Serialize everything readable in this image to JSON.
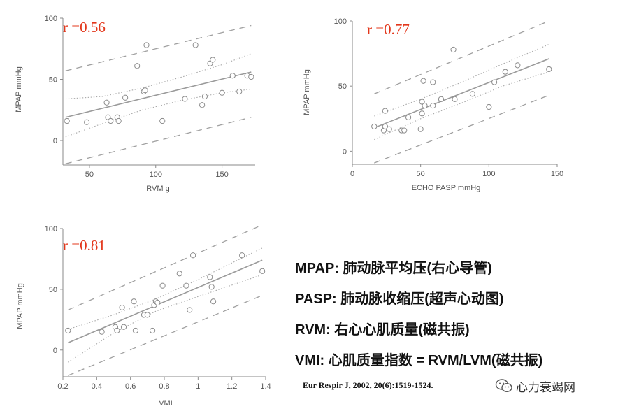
{
  "chart_data": [
    {
      "type": "scatter",
      "r_label": "r =0.56",
      "xlabel": "RVM  g",
      "ylabel": "MPAP  mmHg",
      "xlim": [
        30,
        175
      ],
      "ylim": [
        -20,
        100
      ],
      "xticks": [
        50,
        100,
        150
      ],
      "yticks": [
        0,
        50,
        100
      ],
      "points": [
        {
          "x": 33,
          "y": 16
        },
        {
          "x": 48,
          "y": 15
        },
        {
          "x": 63,
          "y": 31
        },
        {
          "x": 64,
          "y": 19
        },
        {
          "x": 66,
          "y": 16
        },
        {
          "x": 71,
          "y": 19
        },
        {
          "x": 72,
          "y": 16
        },
        {
          "x": 77,
          "y": 35
        },
        {
          "x": 86,
          "y": 61
        },
        {
          "x": 91,
          "y": 40
        },
        {
          "x": 92,
          "y": 41
        },
        {
          "x": 93,
          "y": 78
        },
        {
          "x": 105,
          "y": 16
        },
        {
          "x": 122,
          "y": 34
        },
        {
          "x": 130,
          "y": 78
        },
        {
          "x": 135,
          "y": 29
        },
        {
          "x": 137,
          "y": 36
        },
        {
          "x": 141,
          "y": 63
        },
        {
          "x": 143,
          "y": 66
        },
        {
          "x": 150,
          "y": 39
        },
        {
          "x": 158,
          "y": 53
        },
        {
          "x": 163,
          "y": 40
        },
        {
          "x": 169,
          "y": 53
        },
        {
          "x": 172,
          "y": 52
        }
      ],
      "fit": {
        "x": [
          32,
          172
        ],
        "y": [
          19,
          56
        ]
      },
      "ci_inner": {
        "x": [
          32,
          60,
          90,
          120,
          150,
          172
        ],
        "upper": [
          34,
          36,
          43,
          52,
          62,
          71
        ],
        "lower": [
          3,
          14,
          25,
          33,
          39,
          42
        ]
      },
      "pi_outer": {
        "x": [
          32,
          172
        ],
        "upper": [
          57,
          94
        ],
        "lower": [
          -19,
          19
        ]
      }
    },
    {
      "type": "scatter",
      "r_label": "r =0.77",
      "xlabel": "ECHO PASP  mmHg",
      "ylabel": "MPAP  mmHg",
      "xlim": [
        0,
        150
      ],
      "ylim": [
        -10,
        100
      ],
      "xticks": [
        0,
        50,
        100,
        150
      ],
      "yticks": [
        0,
        50,
        100
      ],
      "points": [
        {
          "x": 16,
          "y": 19
        },
        {
          "x": 23,
          "y": 16
        },
        {
          "x": 24,
          "y": 19
        },
        {
          "x": 24,
          "y": 31
        },
        {
          "x": 27,
          "y": 17
        },
        {
          "x": 36,
          "y": 16
        },
        {
          "x": 38,
          "y": 16
        },
        {
          "x": 41,
          "y": 26
        },
        {
          "x": 50,
          "y": 17
        },
        {
          "x": 51,
          "y": 38
        },
        {
          "x": 51,
          "y": 29
        },
        {
          "x": 52,
          "y": 54
        },
        {
          "x": 53,
          "y": 35
        },
        {
          "x": 59,
          "y": 35
        },
        {
          "x": 59,
          "y": 53
        },
        {
          "x": 65,
          "y": 40
        },
        {
          "x": 74,
          "y": 78
        },
        {
          "x": 75,
          "y": 40
        },
        {
          "x": 88,
          "y": 44
        },
        {
          "x": 100,
          "y": 34
        },
        {
          "x": 104,
          "y": 53
        },
        {
          "x": 112,
          "y": 61
        },
        {
          "x": 121,
          "y": 66
        },
        {
          "x": 144,
          "y": 63
        }
      ],
      "fit": {
        "x": [
          16,
          144
        ],
        "y": [
          18,
          71
        ]
      },
      "ci_inner": {
        "x": [
          16,
          50,
          80,
          110,
          144
        ],
        "upper": [
          27,
          40,
          53,
          67,
          82
        ],
        "lower": [
          9,
          25,
          37,
          50,
          61
        ]
      },
      "pi_outer": {
        "x": [
          16,
          144
        ],
        "upper": [
          44,
          100
        ],
        "lower": [
          -9,
          43
        ]
      }
    },
    {
      "type": "scatter",
      "r_label": "r =0.81",
      "xlabel": "VMI",
      "ylabel": "MPAP  mmHg",
      "xlim": [
        0.2,
        1.4
      ],
      "ylim": [
        -22,
        100
      ],
      "xticks": [
        0.2,
        0.4,
        0.6,
        0.8,
        1.0,
        1.2,
        1.4
      ],
      "yticks": [
        0,
        50,
        100
      ],
      "points": [
        {
          "x": 0.23,
          "y": 16
        },
        {
          "x": 0.43,
          "y": 15
        },
        {
          "x": 0.51,
          "y": 19
        },
        {
          "x": 0.52,
          "y": 16
        },
        {
          "x": 0.55,
          "y": 35
        },
        {
          "x": 0.56,
          "y": 19
        },
        {
          "x": 0.62,
          "y": 40
        },
        {
          "x": 0.63,
          "y": 16
        },
        {
          "x": 0.68,
          "y": 29
        },
        {
          "x": 0.7,
          "y": 29
        },
        {
          "x": 0.73,
          "y": 16
        },
        {
          "x": 0.74,
          "y": 37
        },
        {
          "x": 0.75,
          "y": 40
        },
        {
          "x": 0.76,
          "y": 39
        },
        {
          "x": 0.79,
          "y": 53
        },
        {
          "x": 0.89,
          "y": 63
        },
        {
          "x": 0.93,
          "y": 53
        },
        {
          "x": 0.95,
          "y": 33
        },
        {
          "x": 0.97,
          "y": 78
        },
        {
          "x": 1.07,
          "y": 60
        },
        {
          "x": 1.08,
          "y": 52
        },
        {
          "x": 1.09,
          "y": 40
        },
        {
          "x": 1.26,
          "y": 78
        },
        {
          "x": 1.38,
          "y": 65
        }
      ],
      "fit": {
        "x": [
          0.23,
          1.38
        ],
        "y": [
          6,
          74
        ]
      },
      "ci_inner": {
        "x": [
          0.23,
          0.5,
          0.75,
          1.0,
          1.38
        ],
        "upper": [
          17,
          29,
          42,
          58,
          84
        ],
        "lower": [
          -10,
          14,
          32,
          44,
          62
        ]
      },
      "pi_outer": {
        "x": [
          0.23,
          1.38
        ],
        "upper": [
          33,
          103
        ],
        "lower": [
          -21,
          45
        ]
      }
    }
  ],
  "legend": [
    "MPAP: 肺动脉平均压(右心导管)",
    "PASP: 肺动脉收缩压(超声心动图)",
    "RVM: 右心心肌质量(磁共振)",
    "VMI: 心肌质量指数 = RVM/LVM(磁共振)"
  ],
  "citation": "Eur Respir J, 2002, 20(6):1519-1524.",
  "watermark": "心力衰竭网",
  "colors": {
    "axis": "#8a8a8a",
    "points": "#8a8a8a",
    "fit": "#9a9a9a",
    "r_label": "#e3371b",
    "text": "#111111"
  }
}
